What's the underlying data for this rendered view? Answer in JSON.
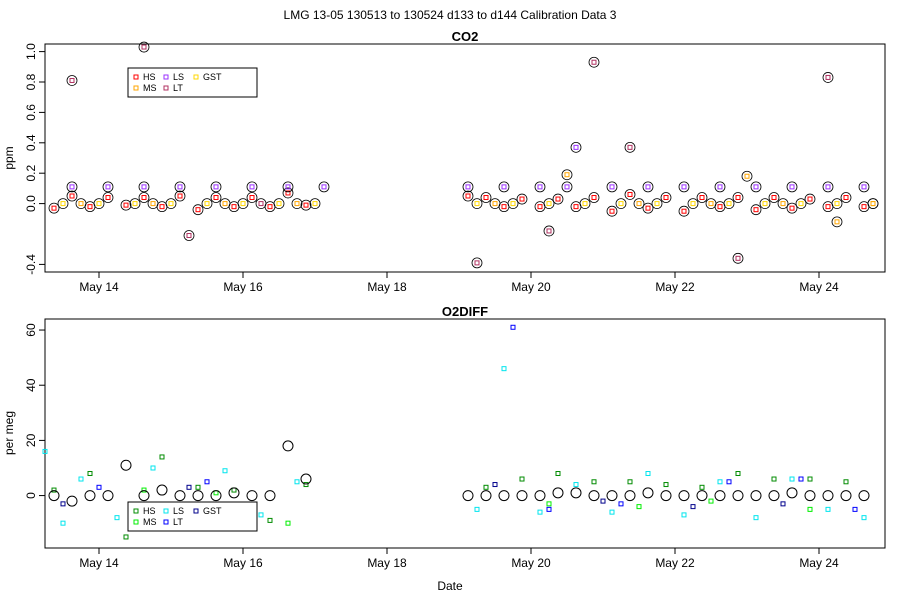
{
  "figure": {
    "title": "LMG   13-05    130513 to 130524    d133 to d144   Calibration Data 3"
  },
  "chart_data": [
    {
      "type": "scatter",
      "title": "CO2",
      "xlabel": "",
      "ylabel": "ppm",
      "xlim": [
        "2013-05-13T06:00",
        "2013-05-24T22:00"
      ],
      "ylim": [
        -0.45,
        1.05
      ],
      "x_ticks": [
        {
          "date": "2013-05-14",
          "label": "May 14"
        },
        {
          "date": "2013-05-16",
          "label": "May 16"
        },
        {
          "date": "2013-05-18",
          "label": "May 18"
        },
        {
          "date": "2013-05-20",
          "label": "May 20"
        },
        {
          "date": "2013-05-22",
          "label": "May 22"
        },
        {
          "date": "2013-05-24",
          "label": "May 24"
        }
      ],
      "y_ticks": [
        {
          "value": 1.0,
          "label": "1.0"
        },
        {
          "value": 0.8,
          "label": "0.8"
        },
        {
          "value": 0.6,
          "label": "0.6"
        },
        {
          "value": 0.4,
          "label": "0.4"
        },
        {
          "value": 0.2,
          "label": "0.2"
        },
        {
          "value": 0.0,
          "label": "0.0"
        },
        {
          "value": -0.4,
          "label": "-0.4"
        }
      ],
      "legend": {
        "placement": "top-left",
        "entries": [
          {
            "name": "HS",
            "color": "#ff0000"
          },
          {
            "name": "LS",
            "color": "#9b30ff"
          },
          {
            "name": "GST",
            "color": "#ffd700"
          },
          {
            "name": "MS",
            "color": "#ffa500"
          },
          {
            "name": "LT",
            "color": "#b03060"
          }
        ]
      },
      "series": [
        {
          "name": "HS",
          "color": "#ff0000",
          "x": [
            "2013-05-13T09:00",
            "2013-05-13T15:00",
            "2013-05-13T21:00",
            "2013-05-14T03:00",
            "2013-05-14T09:00",
            "2013-05-14T15:00",
            "2013-05-14T21:00",
            "2013-05-15T03:00",
            "2013-05-15T09:00",
            "2013-05-15T15:00",
            "2013-05-15T21:00",
            "2013-05-16T03:00",
            "2013-05-16T09:00",
            "2013-05-16T15:00",
            "2013-05-16T21:00",
            "2013-05-19T03:00",
            "2013-05-19T09:00",
            "2013-05-19T15:00",
            "2013-05-19T21:00",
            "2013-05-20T03:00",
            "2013-05-20T09:00",
            "2013-05-20T15:00",
            "2013-05-20T21:00",
            "2013-05-21T03:00",
            "2013-05-21T09:00",
            "2013-05-21T15:00",
            "2013-05-21T21:00",
            "2013-05-22T03:00",
            "2013-05-22T09:00",
            "2013-05-22T15:00",
            "2013-05-22T21:00",
            "2013-05-23T03:00",
            "2013-05-23T09:00",
            "2013-05-23T15:00",
            "2013-05-23T21:00",
            "2013-05-24T03:00",
            "2013-05-24T09:00",
            "2013-05-24T15:00"
          ],
          "y": [
            -0.03,
            0.05,
            -0.02,
            0.04,
            -0.01,
            0.04,
            -0.02,
            0.05,
            -0.04,
            0.04,
            -0.02,
            0.04,
            -0.02,
            0.07,
            -0.01,
            0.05,
            0.04,
            -0.02,
            0.03,
            -0.02,
            0.03,
            -0.02,
            0.04,
            -0.05,
            0.06,
            -0.03,
            0.04,
            -0.05,
            0.04,
            -0.02,
            0.04,
            -0.04,
            0.04,
            -0.03,
            0.03,
            -0.02,
            0.04,
            -0.02
          ]
        },
        {
          "name": "LS",
          "color": "#9b30ff",
          "x": [
            "2013-05-13T15:00",
            "2013-05-14T03:00",
            "2013-05-14T15:00",
            "2013-05-15T03:00",
            "2013-05-15T15:00",
            "2013-05-16T03:00",
            "2013-05-16T15:00",
            "2013-05-17T03:00",
            "2013-05-19T03:00",
            "2013-05-19T15:00",
            "2013-05-20T03:00",
            "2013-05-20T12:00",
            "2013-05-20T15:00",
            "2013-05-21T03:00",
            "2013-05-21T15:00",
            "2013-05-22T03:00",
            "2013-05-22T15:00",
            "2013-05-23T03:00",
            "2013-05-23T15:00",
            "2013-05-24T03:00",
            "2013-05-24T15:00"
          ],
          "y": [
            0.11,
            0.11,
            0.11,
            0.11,
            0.11,
            0.11,
            0.11,
            0.11,
            0.11,
            0.11,
            0.11,
            0.11,
            0.37,
            0.11,
            0.11,
            0.11,
            0.11,
            0.11,
            0.11,
            0.11,
            0.11
          ]
        },
        {
          "name": "GST",
          "color": "#ffd700",
          "x": [
            "2013-05-13T12:00",
            "2013-05-14T00:00",
            "2013-05-14T12:00",
            "2013-05-15T00:00",
            "2013-05-15T12:00",
            "2013-05-16T00:00",
            "2013-05-16T12:00",
            "2013-05-17T00:00",
            "2013-05-19T06:00",
            "2013-05-19T18:00",
            "2013-05-20T06:00",
            "2013-05-20T18:00",
            "2013-05-21T06:00",
            "2013-05-21T18:00",
            "2013-05-22T06:00",
            "2013-05-22T18:00",
            "2013-05-23T06:00",
            "2013-05-23T18:00",
            "2013-05-24T06:00",
            "2013-05-24T18:00"
          ],
          "y": [
            0.0,
            0.0,
            0.0,
            0.0,
            0.0,
            0.0,
            0.0,
            0.0,
            0.0,
            0.0,
            0.0,
            0.0,
            0.0,
            0.0,
            0.0,
            0.0,
            0.0,
            0.0,
            0.0,
            0.0
          ]
        },
        {
          "name": "MS",
          "color": "#ffa500",
          "x": [
            "2013-05-13T18:00",
            "2013-05-14T18:00",
            "2013-05-15T18:00",
            "2013-05-16T18:00",
            "2013-05-19T12:00",
            "2013-05-20T12:00",
            "2013-05-21T12:00",
            "2013-05-22T12:00",
            "2013-05-23T00:00",
            "2013-05-23T12:00",
            "2013-05-24T06:00",
            "2013-05-24T18:00"
          ],
          "y": [
            0.0,
            0.0,
            0.0,
            0.0,
            0.0,
            0.19,
            0.0,
            0.0,
            0.18,
            0.0,
            -0.12,
            0.0
          ]
        },
        {
          "name": "LT",
          "color": "#b03060",
          "x": [
            "2013-05-13T15:00",
            "2013-05-14T15:00",
            "2013-05-15T06:00",
            "2013-05-16T06:00",
            "2013-05-19T06:00",
            "2013-05-20T06:00",
            "2013-05-20T21:00",
            "2013-05-21T09:00",
            "2013-05-22T21:00",
            "2013-05-24T03:00"
          ],
          "y": [
            0.81,
            1.03,
            -0.21,
            0.0,
            -0.39,
            -0.18,
            0.93,
            0.37,
            -0.36,
            0.83
          ]
        }
      ]
    },
    {
      "type": "scatter",
      "title": "O2DIFF",
      "xlabel": "Date",
      "ylabel": "per meg",
      "xlim": [
        "2013-05-13T06:00",
        "2013-05-24T22:00"
      ],
      "ylim": [
        -19,
        64
      ],
      "x_ticks": [
        {
          "date": "2013-05-14",
          "label": "May 14"
        },
        {
          "date": "2013-05-16",
          "label": "May 16"
        },
        {
          "date": "2013-05-18",
          "label": "May 18"
        },
        {
          "date": "2013-05-20",
          "label": "May 20"
        },
        {
          "date": "2013-05-22",
          "label": "May 22"
        },
        {
          "date": "2013-05-24",
          "label": "May 24"
        }
      ],
      "y_ticks": [
        {
          "value": 60,
          "label": "60"
        },
        {
          "value": 40,
          "label": "40"
        },
        {
          "value": 20,
          "label": "20"
        },
        {
          "value": 0,
          "label": "0"
        }
      ],
      "legend": {
        "placement": "bottom-left",
        "entries": [
          {
            "name": "HS",
            "color": "#008b00"
          },
          {
            "name": "LS",
            "color": "#00e5ee"
          },
          {
            "name": "GST",
            "color": "#00008b"
          },
          {
            "name": "MS",
            "color": "#00ee00"
          },
          {
            "name": "LT",
            "color": "#0000ff"
          }
        ]
      },
      "series": [
        {
          "name": "HS",
          "color": "#008b00",
          "x": [
            "2013-05-13T09:00",
            "2013-05-13T21:00",
            "2013-05-14T09:00",
            "2013-05-14T21:00",
            "2013-05-15T09:00",
            "2013-05-15T21:00",
            "2013-05-16T09:00",
            "2013-05-16T21:00",
            "2013-05-19T09:00",
            "2013-05-19T21:00",
            "2013-05-20T09:00",
            "2013-05-20T21:00",
            "2013-05-21T09:00",
            "2013-05-21T21:00",
            "2013-05-22T09:00",
            "2013-05-22T21:00",
            "2013-05-23T09:00",
            "2013-05-23T21:00",
            "2013-05-24T09:00"
          ],
          "y": [
            2,
            8,
            -15,
            14,
            3,
            2,
            -9,
            4,
            3,
            6,
            8,
            5,
            5,
            4,
            3,
            8,
            6,
            6,
            5
          ]
        },
        {
          "name": "LS",
          "color": "#00e5ee",
          "x": [
            "2013-05-13T06:00",
            "2013-05-13T12:00",
            "2013-05-13T18:00",
            "2013-05-14T06:00",
            "2013-05-14T18:00",
            "2013-05-15T06:00",
            "2013-05-15T18:00",
            "2013-05-16T06:00",
            "2013-05-16T18:00",
            "2013-05-19T06:00",
            "2013-05-19T15:00",
            "2013-05-20T03:00",
            "2013-05-20T15:00",
            "2013-05-21T03:00",
            "2013-05-21T15:00",
            "2013-05-22T03:00",
            "2013-05-22T15:00",
            "2013-05-23T03:00",
            "2013-05-23T15:00",
            "2013-05-24T03:00",
            "2013-05-24T15:00"
          ],
          "y": [
            16,
            -10,
            6,
            -8,
            10,
            -6,
            9,
            -7,
            5,
            -5,
            46,
            -6,
            4,
            -6,
            8,
            -7,
            5,
            -8,
            6,
            -5,
            -8
          ]
        },
        {
          "name": "GST",
          "color": "#00008b",
          "x": [
            "2013-05-13T12:00",
            "2013-05-15T06:00",
            "2013-05-19T12:00",
            "2013-05-21T00:00",
            "2013-05-22T06:00",
            "2013-05-23T12:00"
          ],
          "y": [
            -3,
            3,
            4,
            -2,
            -4,
            -3
          ]
        },
        {
          "name": "MS",
          "color": "#00ee00",
          "x": [
            "2013-05-14T15:00",
            "2013-05-15T15:00",
            "2013-05-16T15:00",
            "2013-05-20T06:00",
            "2013-05-21T12:00",
            "2013-05-22T12:00",
            "2013-05-23T21:00"
          ],
          "y": [
            2,
            1,
            -10,
            -3,
            -4,
            -2,
            -5
          ]
        },
        {
          "name": "LT",
          "color": "#0000ff",
          "x": [
            "2013-05-14T00:00",
            "2013-05-15T12:00",
            "2013-05-19T18:00",
            "2013-05-20T06:00",
            "2013-05-21T06:00",
            "2013-05-22T18:00",
            "2013-05-23T18:00",
            "2013-05-24T12:00"
          ],
          "y": [
            3,
            5,
            61,
            -5,
            -3,
            5,
            6,
            -5
          ]
        },
        {
          "name": "",
          "color": "#000000",
          "x": [
            "2013-05-13T09:00",
            "2013-05-13T15:00",
            "2013-05-13T21:00",
            "2013-05-14T03:00",
            "2013-05-14T09:00",
            "2013-05-14T15:00",
            "2013-05-14T21:00",
            "2013-05-15T03:00",
            "2013-05-15T09:00",
            "2013-05-15T15:00",
            "2013-05-15T21:00",
            "2013-05-16T03:00",
            "2013-05-16T09:00",
            "2013-05-16T15:00",
            "2013-05-16T21:00",
            "2013-05-19T03:00",
            "2013-05-19T09:00",
            "2013-05-19T15:00",
            "2013-05-19T21:00",
            "2013-05-20T03:00",
            "2013-05-20T09:00",
            "2013-05-20T15:00",
            "2013-05-20T21:00",
            "2013-05-21T03:00",
            "2013-05-21T09:00",
            "2013-05-21T15:00",
            "2013-05-21T21:00",
            "2013-05-22T03:00",
            "2013-05-22T09:00",
            "2013-05-22T15:00",
            "2013-05-22T21:00",
            "2013-05-23T03:00",
            "2013-05-23T09:00",
            "2013-05-23T15:00",
            "2013-05-23T21:00",
            "2013-05-24T03:00",
            "2013-05-24T09:00",
            "2013-05-24T15:00"
          ],
          "y": [
            0,
            -2,
            0,
            0,
            11,
            0,
            2,
            0,
            0,
            0,
            1,
            0,
            0,
            18,
            6,
            0,
            0,
            0,
            0,
            0,
            1,
            1,
            0,
            0,
            0,
            1,
            0,
            0,
            0,
            0,
            0,
            0,
            0,
            1,
            0,
            0,
            0,
            0
          ]
        }
      ]
    }
  ]
}
